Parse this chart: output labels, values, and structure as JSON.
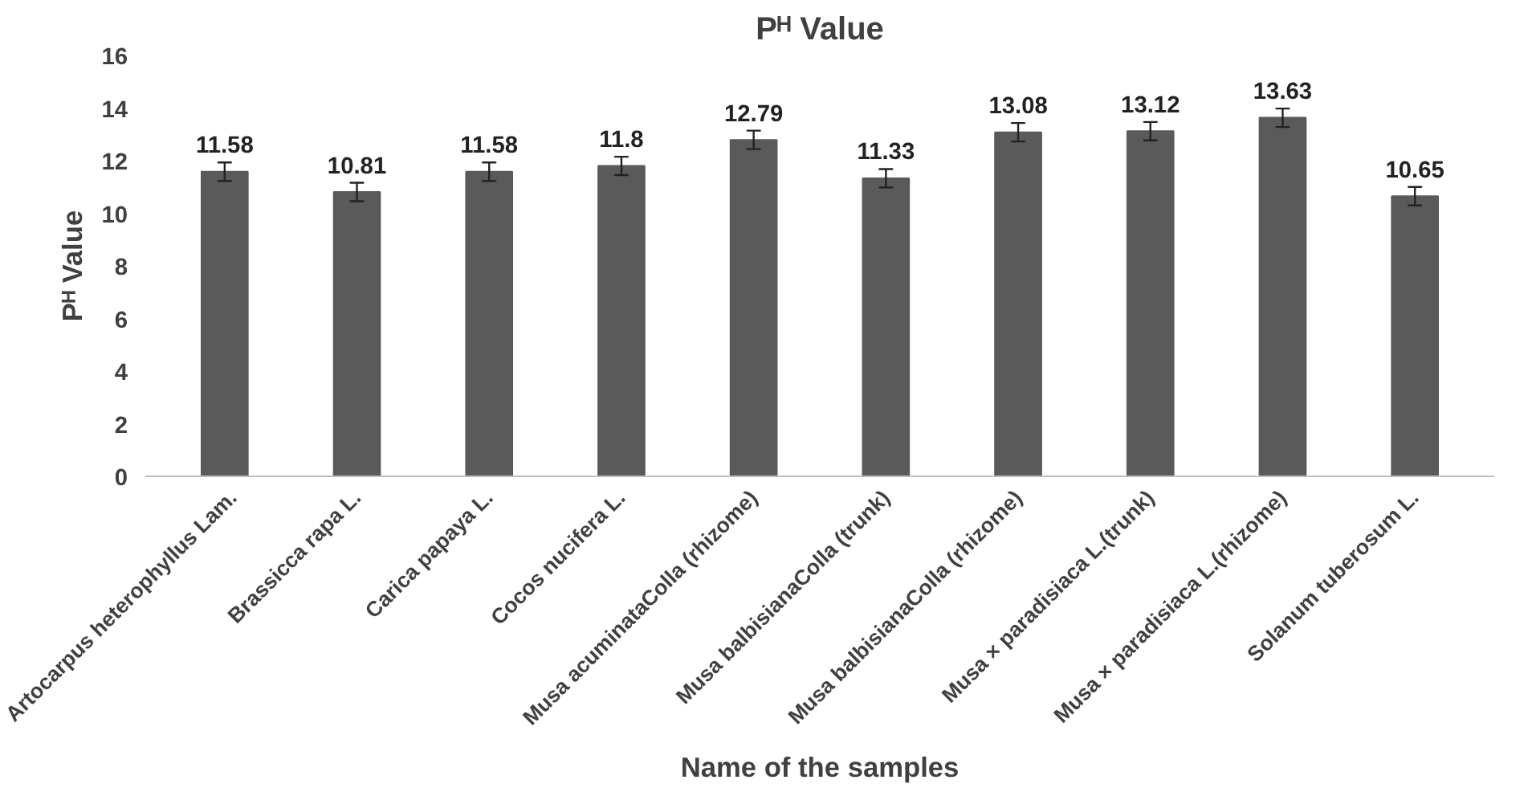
{
  "chart_data": {
    "type": "bar",
    "title": "Pᴴ Value",
    "xlabel": "Name of the samples",
    "ylabel": "Pᴴ Value",
    "categories": [
      "Artocarpus heterophyllus Lam.",
      "Brassicca rapa L.",
      "Carica papaya L.",
      "Cocos nucifera L.",
      "Musa acuminataColla (rhizome)",
      "Musa balbisianaColla (trunk)",
      "Musa balbisianaColla (rhizome)",
      "Musa × paradisiaca L.(trunk)",
      "Musa × paradisiaca L.(rhizome)",
      "Solanum tuberosum L."
    ],
    "values": [
      11.58,
      10.81,
      11.58,
      11.8,
      12.79,
      11.33,
      13.08,
      13.12,
      13.63,
      10.65
    ],
    "errors": [
      0.35,
      0.35,
      0.35,
      0.35,
      0.35,
      0.35,
      0.35,
      0.35,
      0.35,
      0.35
    ],
    "color": "#5a5a5a",
    "ylim": [
      0,
      16
    ],
    "yticks": [
      0,
      2,
      4,
      6,
      8,
      10,
      12,
      14,
      16
    ],
    "grid": false,
    "data_labels": true
  }
}
